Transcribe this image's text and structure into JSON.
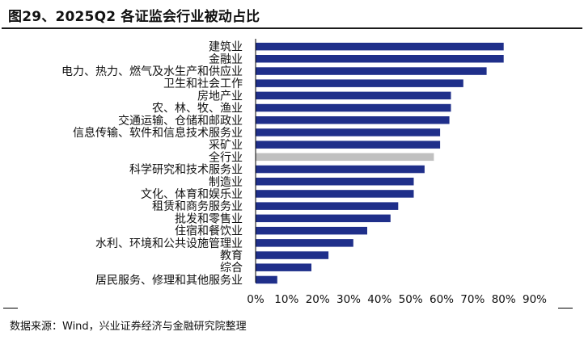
{
  "figure": {
    "title": "图29、2025Q2 各证监会行业被动占比",
    "source": "数据来源：Wind，兴业证券经济与金融研究院整理"
  },
  "colors": {
    "bar": "#1f2f8a",
    "highlight": "#c0c0c0",
    "axis": "#000000"
  },
  "chart_data": {
    "type": "bar",
    "orientation": "horizontal",
    "title": "",
    "xlabel": "",
    "ylabel": "",
    "xlim": [
      0,
      0.9
    ],
    "x_ticks": [
      "0%",
      "10%",
      "20%",
      "30%",
      "40%",
      "50%",
      "60%",
      "70%",
      "80%",
      "90%"
    ],
    "grid": false,
    "legend": "none",
    "categories": [
      "建筑业",
      "金融业",
      "电力、热力、燃气及水生产和供应业",
      "卫生和社会工作",
      "房地产业",
      "农、林、牧、渔业",
      "交通运输、仓储和邮政业",
      "信息传输、软件和信息技术服务业",
      "采矿业",
      "全行业",
      "科学研究和技术服务业",
      "制造业",
      "文化、体育和娱乐业",
      "租赁和商务服务业",
      "批发和零售业",
      "住宿和餐饮业",
      "水利、环境和公共设施管理业",
      "教育",
      "综合",
      "居民服务、修理和其他服务业"
    ],
    "values": [
      0.8,
      0.8,
      0.745,
      0.67,
      0.63,
      0.63,
      0.625,
      0.595,
      0.595,
      0.575,
      0.545,
      0.51,
      0.51,
      0.46,
      0.435,
      0.36,
      0.315,
      0.235,
      0.18,
      0.07
    ],
    "highlight_category": "全行业"
  }
}
